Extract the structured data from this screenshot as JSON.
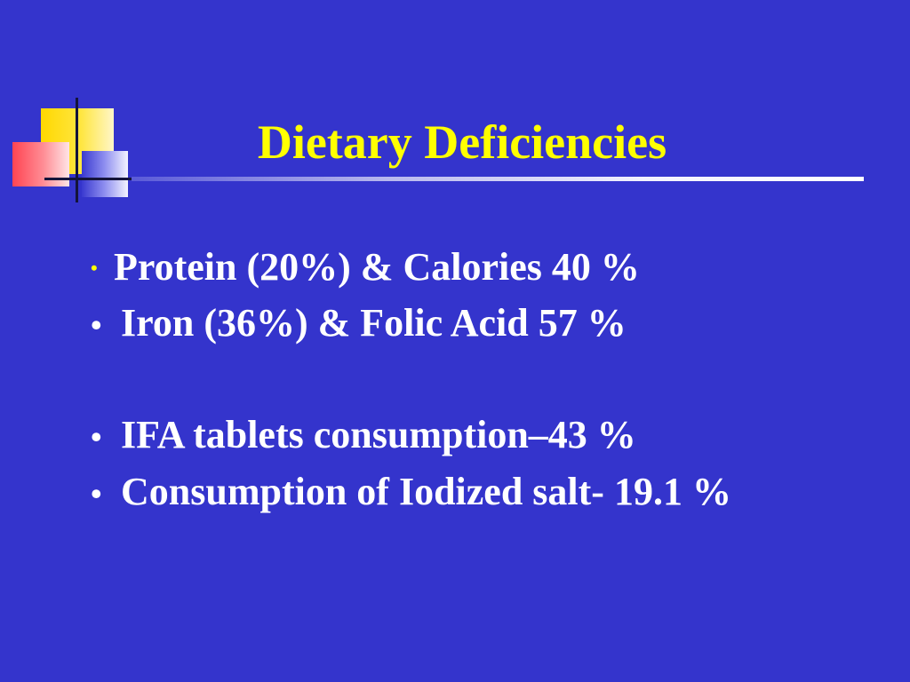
{
  "slide": {
    "title": "Dietary Deficiencies",
    "bullets": [
      {
        "marker": "•",
        "text": "Protein (20%) & Calories 40 %"
      },
      {
        "marker": "•",
        "text": "Iron (36%) & Folic Acid 57 %"
      },
      {
        "marker": "•",
        "text": "IFA  tablets consumption–43 %"
      },
      {
        "marker": "•",
        "text": "Consumption of Iodized salt- 19.1 %"
      }
    ]
  },
  "colors": {
    "background": "#3434cc",
    "title": "#ffff00",
    "text": "#ffffff",
    "first_marker": "#ffff00"
  }
}
